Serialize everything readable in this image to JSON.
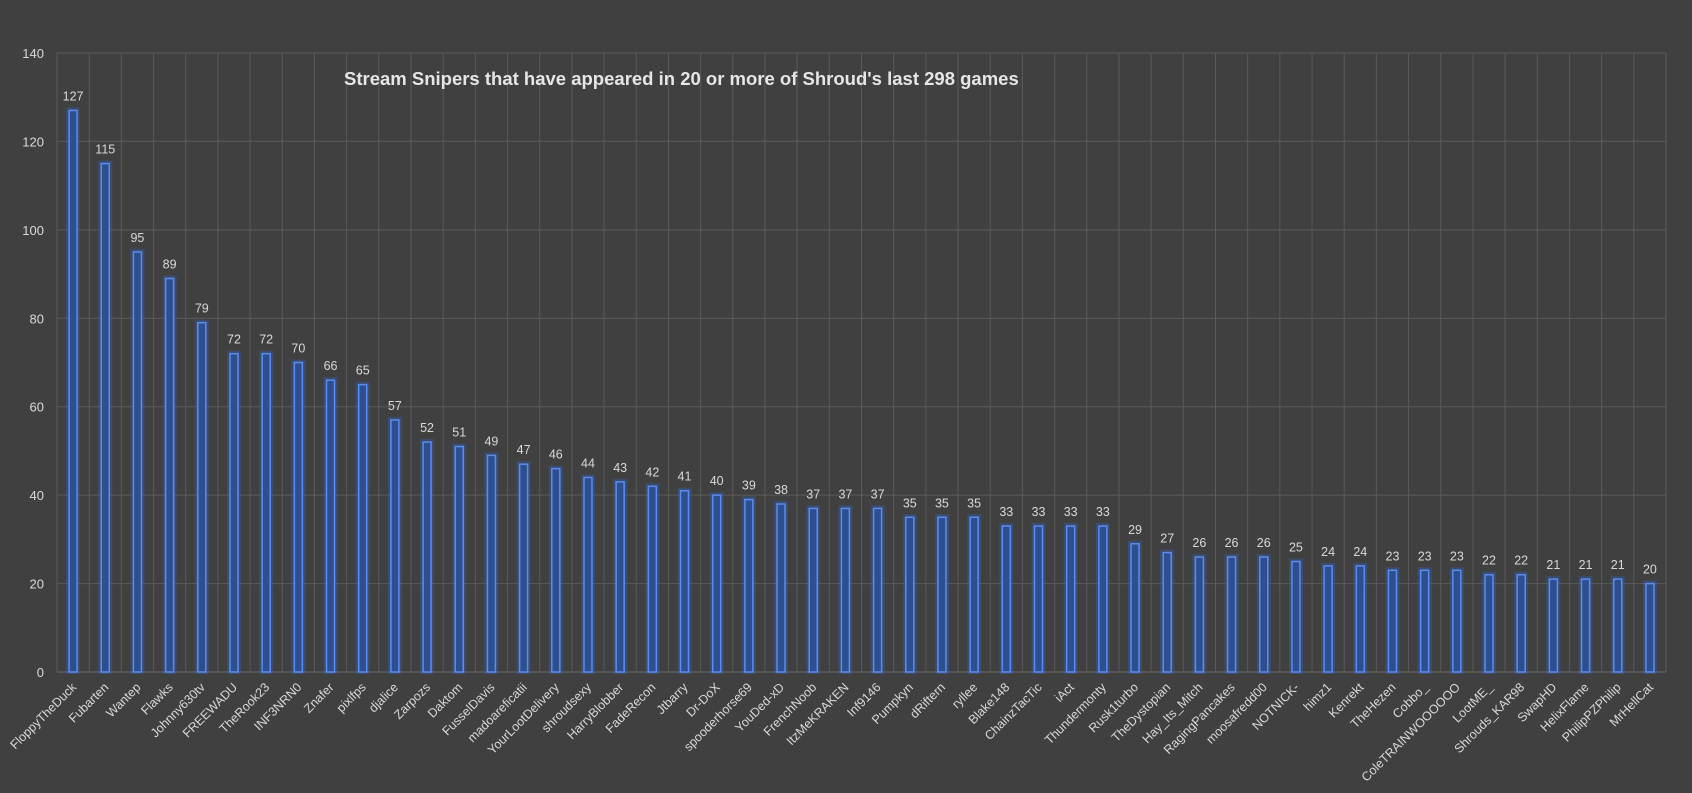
{
  "chart_data": {
    "type": "bar",
    "title": "Stream Snipers that have appeared in 20 or more of Shroud's last 298 games",
    "xlabel": "",
    "ylabel": "",
    "ylim": [
      0,
      140
    ],
    "yticks": [
      0,
      20,
      40,
      60,
      80,
      100,
      120,
      140
    ],
    "grid": true,
    "legend": "none",
    "colors": {
      "bar_fill": "#2e4f8f",
      "bar_edge": "#5a8df0",
      "background": "#404040",
      "text": "#d9d9d9",
      "grid": "#5a5a5a"
    },
    "categories": [
      "FloppyTheDuck",
      "Fubarten",
      "Wantep",
      "Flawks",
      "Johnny630tv",
      "FREEWADU",
      "TheRook23",
      "INF3NRN0",
      "Znafer",
      "pixlfps",
      "djalice",
      "Zarpozs",
      "Daktom",
      "FusselDavis",
      "madoareficatii",
      "YourLootDelivery",
      "shroudsexy",
      "HarryBlobber",
      "FadeRecon",
      "Jtbarry",
      "Dr-DoX",
      "spooderhorse69",
      "YouDed-xD",
      "FrenchNoob",
      "ItzMeKRAKEN",
      "Inf9146",
      "Pumpkyn",
      "dRiftern",
      "ryllee",
      "Blake148",
      "ChainzTacTic",
      "iAct",
      "Thundermonty",
      "Rusk1turbo",
      "TheDystopian",
      "Hay_Its_Mitch",
      "RagingPancakes",
      "moosafredd00",
      "NOTNICK-",
      "himz1",
      "Kenrekt",
      "TheHezen",
      "Cobbo_",
      "ColeTRAINWOOOOOO",
      "LootME_",
      "Shrouds_KAR98",
      "SwapHD",
      "HelixFlame",
      "PhilipPZPhilip",
      "MrHellCat"
    ],
    "values": [
      127,
      115,
      95,
      89,
      79,
      72,
      72,
      70,
      66,
      65,
      57,
      52,
      51,
      49,
      47,
      46,
      44,
      43,
      42,
      41,
      40,
      39,
      38,
      37,
      37,
      37,
      35,
      35,
      35,
      33,
      33,
      33,
      33,
      29,
      27,
      26,
      26,
      26,
      25,
      24,
      24,
      23,
      23,
      23,
      22,
      22,
      21,
      21,
      21,
      20
    ]
  }
}
